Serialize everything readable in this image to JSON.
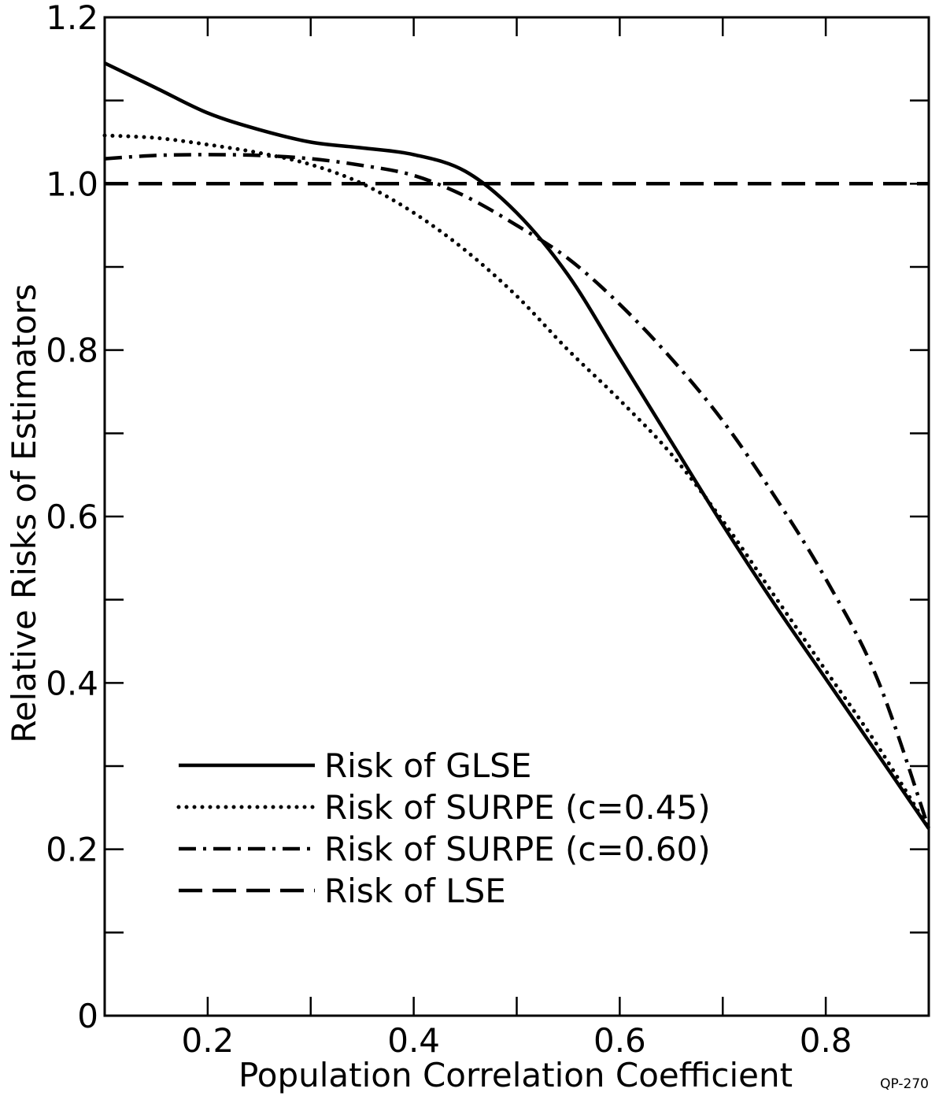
{
  "chart_data": {
    "type": "line",
    "xlabel": "Population Correlation Coefficient",
    "ylabel": "Relative Risks of Estimators",
    "xlim": [
      0.1,
      0.9
    ],
    "ylim": [
      0,
      1.2
    ],
    "x_ticks": [
      0.1,
      0.2,
      0.3,
      0.4,
      0.5,
      0.6,
      0.7,
      0.8,
      0.9
    ],
    "x_tick_labels": [
      {
        "value": 0.2,
        "label": "0.2"
      },
      {
        "value": 0.4,
        "label": "0.4"
      },
      {
        "value": 0.6,
        "label": "0.6"
      },
      {
        "value": 0.8,
        "label": "0.8"
      }
    ],
    "y_ticks": [
      0,
      0.1,
      0.2,
      0.3,
      0.4,
      0.5,
      0.6,
      0.7,
      0.8,
      0.9,
      1.0,
      1.1,
      1.2
    ],
    "y_tick_labels": [
      {
        "value": 0,
        "label": "0"
      },
      {
        "value": 0.2,
        "label": "0.2"
      },
      {
        "value": 0.4,
        "label": "0.4"
      },
      {
        "value": 0.6,
        "label": "0.6"
      },
      {
        "value": 0.8,
        "label": "0.8"
      },
      {
        "value": 1.0,
        "label": "1.0"
      },
      {
        "value": 1.2,
        "label": "1.2"
      }
    ],
    "grid": false,
    "legend_position": "lower-left",
    "series": [
      {
        "name": "Risk of GLSE",
        "style": "solid",
        "x": [
          0.1,
          0.15,
          0.2,
          0.25,
          0.3,
          0.35,
          0.4,
          0.45,
          0.5,
          0.55,
          0.6,
          0.65,
          0.7,
          0.75,
          0.8,
          0.85,
          0.9
        ],
        "y": [
          1.145,
          1.115,
          1.085,
          1.065,
          1.05,
          1.043,
          1.035,
          1.015,
          0.965,
          0.89,
          0.79,
          0.69,
          0.59,
          0.495,
          0.405,
          0.315,
          0.225
        ]
      },
      {
        "name": "Risk of SURPE (c=0.45)",
        "style": "dotted",
        "x": [
          0.1,
          0.15,
          0.2,
          0.25,
          0.3,
          0.35,
          0.4,
          0.45,
          0.5,
          0.55,
          0.6,
          0.65,
          0.7,
          0.75,
          0.8,
          0.85,
          0.9
        ],
        "y": [
          1.058,
          1.055,
          1.047,
          1.037,
          1.023,
          1.0,
          0.965,
          0.92,
          0.865,
          0.8,
          0.74,
          0.675,
          0.595,
          0.505,
          0.415,
          0.325,
          0.225
        ]
      },
      {
        "name": "Risk of SURPE (c=0.60)",
        "style": "dash-dot",
        "x": [
          0.1,
          0.15,
          0.2,
          0.25,
          0.3,
          0.35,
          0.4,
          0.45,
          0.5,
          0.55,
          0.6,
          0.65,
          0.7,
          0.75,
          0.8,
          0.85,
          0.9
        ],
        "y": [
          1.03,
          1.034,
          1.035,
          1.034,
          1.03,
          1.022,
          1.01,
          0.985,
          0.95,
          0.91,
          0.855,
          0.79,
          0.715,
          0.625,
          0.525,
          0.405,
          0.225
        ]
      },
      {
        "name": "Risk of LSE",
        "style": "dashed",
        "x": [
          0.1,
          0.9
        ],
        "y": [
          1.0,
          1.0
        ]
      }
    ],
    "annotations": [
      "QP-270"
    ]
  }
}
